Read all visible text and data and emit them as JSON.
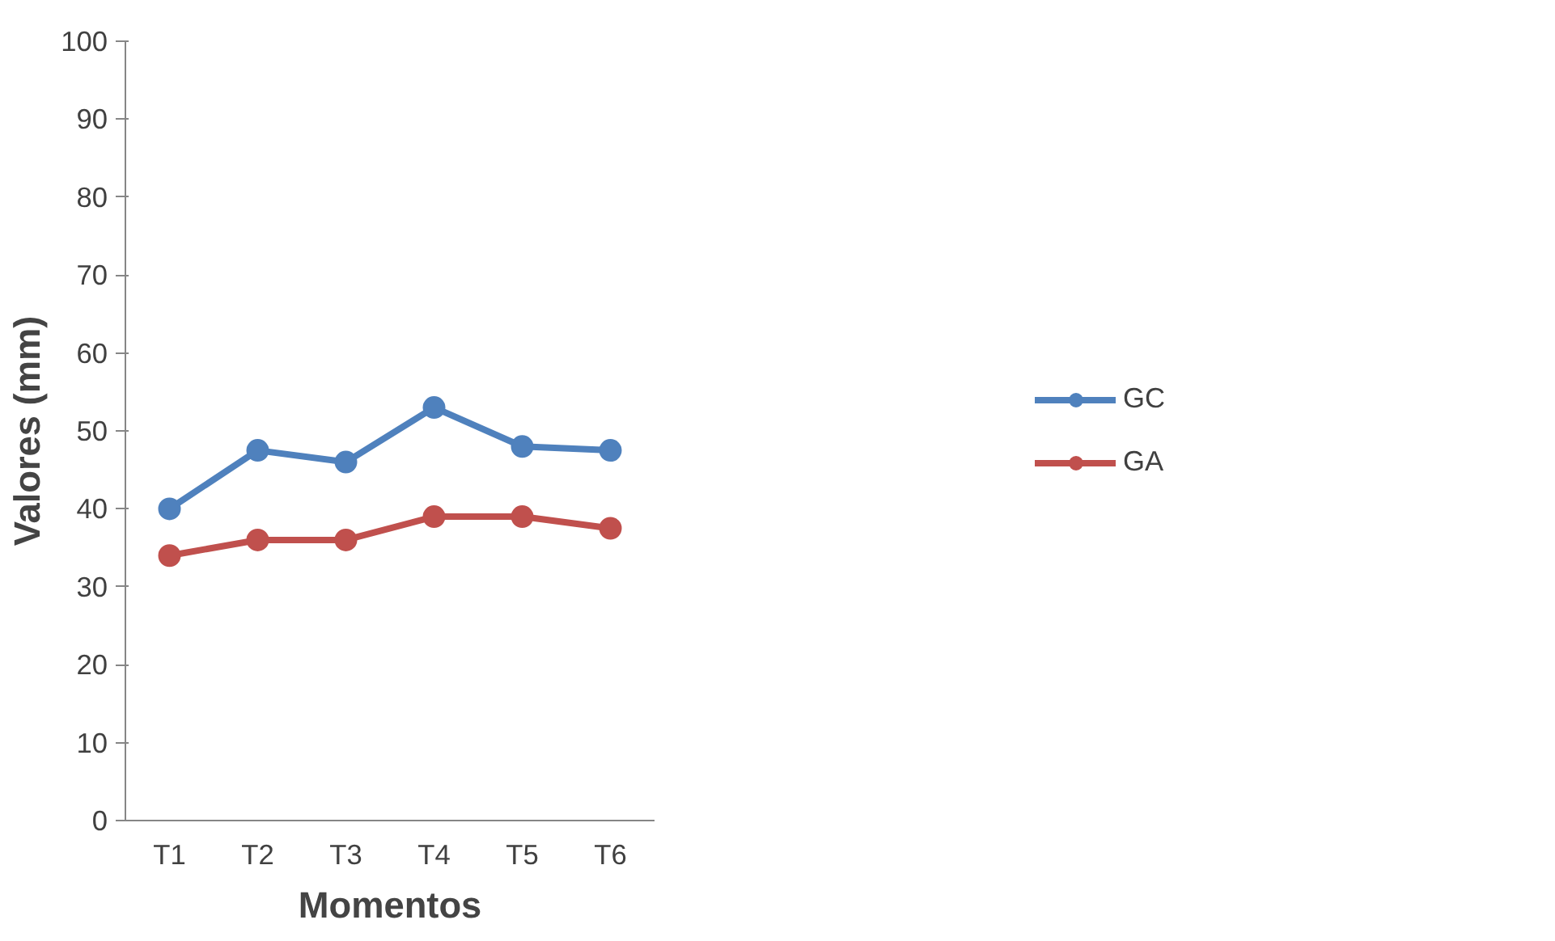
{
  "chart_data": {
    "type": "line",
    "xlabel": "Momentos",
    "ylabel": "Valores (mm)",
    "categories": [
      "T1",
      "T2",
      "T3",
      "T4",
      "T5",
      "T6"
    ],
    "series": [
      {
        "name": "GC",
        "color": "#4f81bd",
        "values": [
          40,
          47.5,
          46,
          53,
          48,
          47.5
        ]
      },
      {
        "name": "GA",
        "color": "#c0504d",
        "values": [
          34,
          36,
          36,
          39,
          39,
          37.5
        ]
      }
    ],
    "ylim": [
      0,
      100
    ],
    "yticks": [
      0,
      10,
      20,
      30,
      40,
      50,
      60,
      70,
      80,
      90,
      100
    ],
    "grid": false,
    "legend": "right",
    "marker": "circle",
    "line_style": "solid"
  }
}
